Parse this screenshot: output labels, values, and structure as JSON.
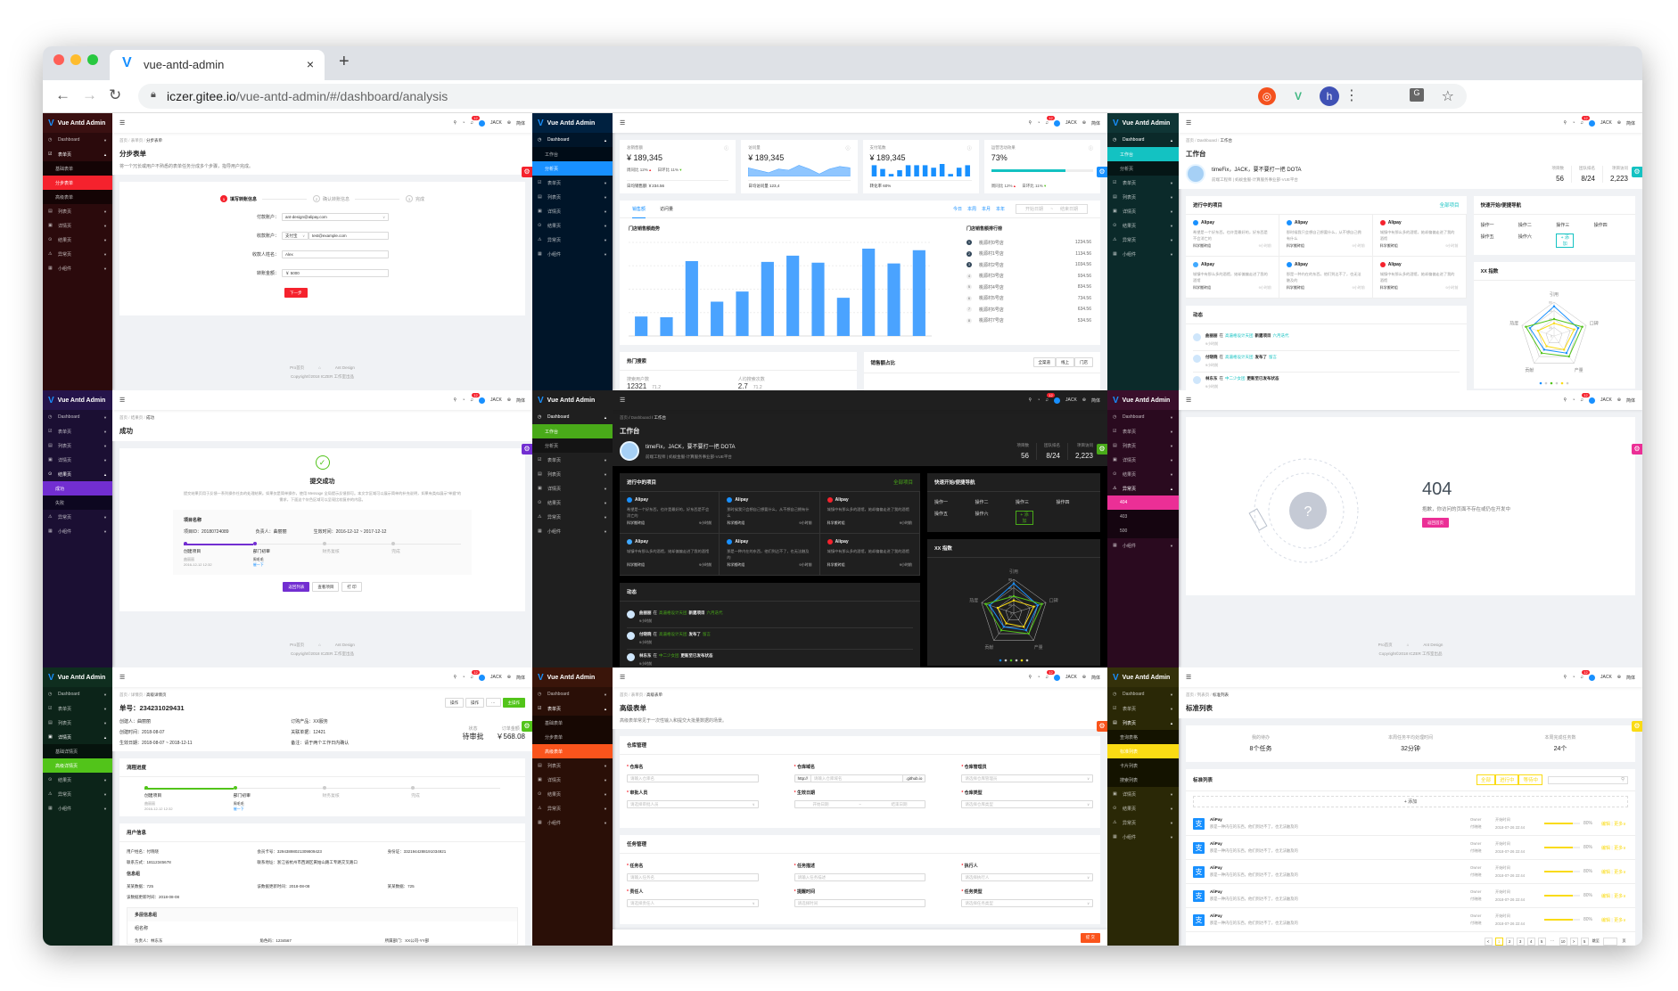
{
  "browser": {
    "tab_title": "vue-antd-admin",
    "close": "×",
    "new_tab": "+",
    "url_host": "iczer.gitee.io",
    "url_path": "/vue-antd-admin/#/dashboard/analysis",
    "profile_initial": "h",
    "icons": [
      "back-icon",
      "forward-icon",
      "reload-icon",
      "lock-icon",
      "translate-icon",
      "star-icon",
      "extension-icon",
      "vue-devtools-icon",
      "more-icon"
    ]
  },
  "app": {
    "logo_text": "Vue Antd Admin",
    "user": "JACK",
    "lang": "简体",
    "badge": "12"
  },
  "footer": {
    "links": [
      "Pro首页",
      "Ant Design"
    ],
    "copyright": "Copyright©2018 ICZER 工作室出品"
  },
  "menu": [
    {
      "label": "Dashboard",
      "icon": "dashboard-icon"
    },
    {
      "label": "表单页",
      "icon": "form-icon"
    },
    {
      "label": "列表页",
      "icon": "table-icon"
    },
    {
      "label": "详情页",
      "icon": "profile-icon"
    },
    {
      "label": "结果页",
      "icon": "check-circle-icon"
    },
    {
      "label": "异常页",
      "icon": "warning-icon"
    },
    {
      "label": "小组件",
      "icon": "appstore-icon"
    }
  ],
  "panels": [
    {
      "key": "step-form",
      "theme": {
        "sb": "#2b0a0c",
        "logo": "#3a1011",
        "sub": "#140405",
        "accent": "#f5222d"
      },
      "open": 1,
      "active": 1,
      "sub": [
        "基础表单",
        "分步表单",
        "高级表单"
      ],
      "breadcrumb": [
        "首页",
        "表单页",
        "分步表单"
      ],
      "title": "分步表单",
      "desc": "将一个冗长或用户不熟悉的表单任务分成多个步骤，指导用户完成。",
      "steps": [
        {
          "num": "1",
          "title": "填写转账信息"
        },
        {
          "num": "2",
          "title": "确认转账信息"
        },
        {
          "num": "3",
          "title": "完成"
        }
      ],
      "fields": [
        {
          "label": "付款账户：",
          "value": "ant-design@alipay.com"
        },
        {
          "label": "收款账户：",
          "select": "支付宝",
          "value": "test@example.com"
        },
        {
          "label": "收款人姓名：",
          "value": "Alex"
        },
        {
          "label": "转账金额：",
          "value": "￥ 5000"
        }
      ],
      "next": "下一步"
    },
    {
      "key": "analysis",
      "theme": {
        "sb": "#001529",
        "logo": "#002140",
        "sub": "#000c17",
        "accent": "#1890ff"
      },
      "open": 0,
      "active": 1,
      "sub": [
        "工作台",
        "分析页"
      ],
      "cards": [
        {
          "label": "总销售额",
          "value": "¥ 189,345",
          "wow": "周同比 12%",
          "dod": "日环比 11%",
          "foot": "日均销售额 ￥234.56"
        },
        {
          "label": "访问量",
          "value": "¥ 189,345",
          "foot": "日均访问量 123,4",
          "trend": [
            7,
            5,
            3,
            6,
            5,
            9,
            6,
            2,
            6,
            8,
            7
          ]
        },
        {
          "label": "支付笔数",
          "value": "¥ 189,345",
          "foot": "转化率 60%",
          "bars": [
            9,
            6,
            2,
            5,
            9,
            9,
            9,
            7,
            10,
            2,
            7,
            9
          ]
        },
        {
          "label": "运营活动效果",
          "value": "73%",
          "progress": 73,
          "wow": "周同比 12%",
          "dod": "日环比 11%"
        }
      ],
      "tabs": [
        "销售额",
        "访问量"
      ],
      "periods": [
        "今日",
        "本周",
        "本月",
        "本年"
      ],
      "range": {
        "start": "开始日期",
        "sep": "~",
        "end": "结束日期"
      },
      "rank_title": "门店销售额排行榜",
      "rank": [
        {
          "no": "1",
          "name": "桃源村0号店",
          "value": "1234.56"
        },
        {
          "no": "2",
          "name": "桃源村1号店",
          "value": "1134.56"
        },
        {
          "no": "3",
          "name": "桃源村2号店",
          "value": "1034.56"
        },
        {
          "no": "4",
          "name": "桃源村3号店",
          "value": "934.56"
        },
        {
          "no": "5",
          "name": "桃源村4号店",
          "value": "834.56"
        },
        {
          "no": "6",
          "name": "桃源村5号店",
          "value": "734.56"
        },
        {
          "no": "7",
          "name": "桃源村6号店",
          "value": "634.56"
        },
        {
          "no": "8",
          "name": "桃源村7号店",
          "value": "534.56"
        }
      ],
      "hot": {
        "title": "热门搜索",
        "users_label": "搜索用户数",
        "users": "12321",
        "users_rate": "71.2",
        "avg_label": "人均搜索次数",
        "avg": "2.7",
        "avg_rate": "71.2"
      },
      "share": {
        "title": "销售额占比",
        "buttons": [
          "全渠道",
          "线上",
          "门店"
        ]
      }
    },
    {
      "key": "workplace",
      "theme": {
        "sb": "#0b2a2a",
        "logo": "#0f3535",
        "sub": "#051616",
        "accent": "#13c2c2"
      },
      "open": 0,
      "active": 0,
      "sub": [
        "工作台",
        "分析页"
      ]
    },
    {
      "key": "success",
      "theme": {
        "sb": "#1b0f33",
        "logo": "#25144a",
        "sub": "#0d0720",
        "accent": "#722ed1"
      },
      "open": 4,
      "active": 0,
      "sub": [
        "成功",
        "失败"
      ],
      "breadcrumb": [
        "首页",
        "结果页",
        "成功"
      ],
      "title": "成功",
      "result_title": "提交成功",
      "result_desc": "提交结果页用于反馈一系列操作任务的处理结果。如果仅是简单操作，使用 Message 全局提示反馈即可。本文字区域可以展示简单的补充说明，如果有类似展示“单据”的需求，下面这个灰色区域可以呈现比较复杂的内容。",
      "project": {
        "title": "项目名称",
        "id": "项目ID：20180724089",
        "owner": "负责人：曲丽丽",
        "time": "生效时间：2016-12-12 ~ 2017-12-12"
      },
      "buttons": [
        "返回列表",
        "查看项目",
        "打 印"
      ]
    },
    {
      "key": "workplace-dark",
      "theme": {
        "sb": "#1f1f1f",
        "logo": "#1f1f1f",
        "sub": "#141414",
        "accent": "#49aa19"
      },
      "dark": true,
      "open": 0,
      "active": 0,
      "sub": [
        "工作台",
        "分析页"
      ]
    },
    {
      "key": "exception-404",
      "theme": {
        "sb": "#2a0a1f",
        "logo": "#3a0f2b",
        "sub": "#150510",
        "accent": "#eb2f96"
      },
      "open": 5,
      "active": 0,
      "sub": [
        "404",
        "403",
        "500"
      ],
      "code": "404",
      "message": "抱歉，你访问的页面不存在或仍在开发中",
      "back": "返回首页"
    },
    {
      "key": "advanced-profile",
      "theme": {
        "sb": "#0c2419",
        "logo": "#0f2e1f",
        "sub": "#06130d",
        "accent": "#52c41a"
      },
      "open": 3,
      "active": 1,
      "sub": [
        "基础详情页",
        "高级详情页"
      ],
      "breadcrumb": [
        "首页",
        "详情页",
        "高级详情页"
      ],
      "title": "单号：234231029431",
      "actions": [
        "操作",
        "操作",
        "···",
        "主操作"
      ],
      "info": [
        "创建人：曲丽丽",
        "订购产品：XX服务",
        "创建时间：2018-08-07",
        "关联单据：12421",
        "生效日期：2018-08-07 ~ 2018-12-11",
        "备注：请于两个工作日内确认"
      ],
      "status_label": "状态",
      "status": "待审批",
      "amount_label": "订单金额",
      "amount": "￥568.08",
      "flow_title": "流程进度",
      "user_title": "用户信息",
      "user": [
        "用户姓名：付晓晓",
        "会员卡号：32943898021309809423",
        "身份证：3321944288191034921",
        "联系方式：18112345678",
        "联系地址：浙江省杭州市西湖区黄姑山路工专路交叉路口",
        ""
      ],
      "group_title": "信息组",
      "group": [
        "某某数据：725",
        "该数据更新时间：2018-08-08",
        "某某数据：725",
        "该数据更新时间：2018-08-08"
      ],
      "multi_title": "多层信息组",
      "multi_name": "组名称",
      "multi": [
        "负责人：林东东",
        "角色码：1234567",
        "所属部门：XX公司-YY部"
      ]
    },
    {
      "key": "advanced-form",
      "theme": {
        "sb": "#2a0f07",
        "logo": "#3a150a",
        "sub": "#170803",
        "accent": "#fa541c"
      },
      "open": 1,
      "active": 2,
      "sub": [
        "基础表单",
        "分步表单",
        "高级表单"
      ],
      "breadcrumb": [
        "首页",
        "表单页",
        "高级表单"
      ],
      "title": "高级表单",
      "desc": "高级表单常见于一次性输入和提交大批量数据的场景。",
      "sections": [
        {
          "title": "仓库管理",
          "fields": [
            {
              "label": "仓库名",
              "ph": "请输入仓库名"
            },
            {
              "label": "仓库域名",
              "pre": "http://",
              "ph": "请输入仓库域名",
              "post": ".github.io"
            },
            {
              "label": "仓库管理员",
              "ph": "请选择仓库管理员",
              "select": true
            },
            {
              "label": "审批人员",
              "ph": "请选择审批人员",
              "select": true
            },
            {
              "label": "生效日期",
              "ph": "开始日期",
              "ph2": "结束日期"
            },
            {
              "label": "仓库类型",
              "ph": "请选择仓库类型",
              "select": true
            }
          ]
        },
        {
          "title": "任务管理",
          "fields": [
            {
              "label": "任务名",
              "ph": "请输入任务名"
            },
            {
              "label": "任务描述",
              "ph": "请输入任务描述"
            },
            {
              "label": "执行人",
              "ph": "请选择执行人",
              "select": true
            },
            {
              "label": "责任人",
              "ph": "请选择责任人",
              "select": true
            },
            {
              "label": "提醒时间",
              "ph": "请选择时间"
            },
            {
              "label": "任务类型",
              "ph": "请选择任务类型",
              "select": true
            }
          ]
        }
      ],
      "submit": "提 交"
    },
    {
      "key": "standard-list",
      "theme": {
        "sb": "#2a2806",
        "logo": "#34310a",
        "sub": "#141300",
        "accent": "#fadb14"
      },
      "open": 2,
      "active": 1,
      "sub": [
        "查询表格",
        "标准列表",
        "卡片列表",
        "搜索列表"
      ],
      "breadcrumb": [
        "首页",
        "列表页",
        "标准列表"
      ],
      "title": "标准列表",
      "stats": [
        {
          "label": "我的待办",
          "value": "8个任务"
        },
        {
          "label": "本周任务平均处理时间",
          "value": "32分钟"
        },
        {
          "label": "本周完成任务数",
          "value": "24个"
        }
      ],
      "list_title": "标准列表",
      "filters": [
        "全部",
        "进行中",
        "等待中"
      ],
      "add": "+ 添加",
      "items": [
        {
          "title": "AliPay",
          "desc": "那是一种内在的东西，他们到达不了，也无法触及的",
          "owner_label": "Owner",
          "owner": "付晓晓",
          "start_label": "开始时间",
          "start": "2018-07-26 22:44",
          "percent": 80,
          "percent_text": "80%",
          "edit": "编辑",
          "more": "更多"
        },
        {
          "title": "AliPay",
          "desc": "那是一种内在的东西，他们到达不了，也无法触及的",
          "owner_label": "Owner",
          "owner": "付晓晓",
          "start_label": "开始时间",
          "start": "2018-07-26 22:44",
          "percent": 80,
          "percent_text": "80%",
          "edit": "编辑",
          "more": "更多"
        },
        {
          "title": "AliPay",
          "desc": "那是一种内在的东西，他们到达不了，也无法触及的",
          "owner_label": "Owner",
          "owner": "付晓晓",
          "start_label": "开始时间",
          "start": "2018-07-26 22:44",
          "percent": 80,
          "percent_text": "80%",
          "edit": "编辑",
          "more": "更多"
        },
        {
          "title": "AliPay",
          "desc": "那是一种内在的东西，他们到达不了，也无法触及的",
          "owner_label": "Owner",
          "owner": "付晓晓",
          "start_label": "开始时间",
          "start": "2018-07-26 22:44",
          "percent": 80,
          "percent_text": "80%",
          "edit": "编辑",
          "more": "更多"
        },
        {
          "title": "AliPay",
          "desc": "那是一种内在的东西，他们到达不了，也无法触及的",
          "owner_label": "Owner",
          "owner": "付晓晓",
          "start_label": "开始时间",
          "start": "2018-07-26 22:44",
          "percent": 80,
          "percent_text": "80%",
          "edit": "编辑",
          "more": "更多"
        }
      ],
      "pagination": {
        "prev": "<",
        "pages": [
          "1",
          "2",
          "3",
          "4",
          "5"
        ],
        "ellipsis": "···",
        "last": "10",
        "next": ">",
        "size": "5",
        "goto": "跳至",
        "unit": "页"
      }
    }
  ],
  "workplace": {
    "breadcrumb": [
      "首页",
      "Dashboard",
      "工作台"
    ],
    "title": "工作台",
    "greeting": "timeFix，JACK，要不要打一把 DOTA",
    "subtitle": "前端工程师 | 蚂蚁金服-计算服务事业部-VUE平台",
    "stats": [
      {
        "label": "项目数",
        "value": "56"
      },
      {
        "label": "团队排名",
        "value": "8/24"
      },
      {
        "label": "项目访问",
        "value": "2,223"
      }
    ],
    "projects_title": "进行中的项目",
    "all_projects": "全部项目",
    "projects": [
      {
        "name": "Alipay",
        "desc": "希望是一个好东西，也许是最好的，好东西是不会消亡的",
        "group": "科学搬砖组",
        "time": "9小时前",
        "color": "#1890ff"
      },
      {
        "name": "Alipay",
        "desc": "那时候我只会想自己想要什么，从不想自己拥有什么",
        "group": "科学搬砖组",
        "time": "9小时前",
        "color": "#1890ff"
      },
      {
        "name": "Alipay",
        "desc": "城镇中有那么多的酒馆，她却偏偏走进了我的酒馆",
        "group": "科学搬砖组",
        "time": "9小时前",
        "color": "#f5222d"
      },
      {
        "name": "Alipay",
        "desc": "城镇中有那么多的酒馆，她却偏偏走进了我的酒馆",
        "group": "科学搬砖组",
        "time": "9小时前",
        "color": "#40a9ff"
      },
      {
        "name": "Alipay",
        "desc": "那是一种内在的东西，他们到达不了，也无法触及的",
        "group": "科学搬砖组",
        "time": "9小时前",
        "color": "#1890ff"
      },
      {
        "name": "Alipay",
        "desc": "城镇中有那么多的酒馆，她却偏偏走进了我的酒馆",
        "group": "科学搬砖组",
        "time": "9小时前",
        "color": "#f5222d"
      }
    ],
    "dynamics_title": "动态",
    "dynamics": [
      {
        "user": "曲丽丽",
        "at": "在",
        "group": "高逼格设计天团",
        "action": "新建项目",
        "target": "六月迭代",
        "time": "9小时前"
      },
      {
        "user": "付晓晓",
        "at": "在",
        "group": "高逼格设计天团",
        "action": "发布了",
        "target": "留言",
        "time": "9小时前"
      },
      {
        "user": "林东东",
        "at": "在",
        "group": "中二少女团",
        "action": "更新至已发布状态",
        "target": "",
        "time": "9小时前"
      }
    ],
    "quick_title": "快速开始/便捷导航",
    "quick": [
      "操作一",
      "操作二",
      "操作三",
      "操作四",
      "操作五",
      "操作六"
    ],
    "quick_add": "+ 添加",
    "radar_title": "XX 指数"
  },
  "flow": {
    "steps": [
      "创建项目",
      "部门初审",
      "财务复核",
      "完成"
    ],
    "creator": "曲丽丽",
    "created": "2016-12-12 12:32",
    "reviewer": "周毛毛",
    "urge": "催一下"
  },
  "chart_data": [
    {
      "type": "bar",
      "title": "门店销售额趋势",
      "categories": [
        "1月",
        "2月",
        "3月",
        "4月",
        "5月",
        "6月",
        "7月",
        "8月",
        "9月",
        "10月",
        "11月",
        "12月"
      ],
      "values": [
        250,
        240,
        960,
        440,
        570,
        950,
        1030,
        940,
        490,
        1120,
        930,
        1100
      ],
      "ylim": [
        0,
        1200
      ],
      "grid": true
    },
    {
      "type": "radar",
      "title": "XX 指数",
      "axes": [
        "引用",
        "口碑",
        "产量",
        "贡献",
        "热度"
      ],
      "ticks": [
        "0",
        "20",
        "40",
        "60",
        "80"
      ],
      "range": [
        0,
        80
      ],
      "series": [
        {
          "values": [
            70,
            60,
            50,
            40,
            60
          ],
          "color": "#1890ff"
        },
        {
          "values": [
            40,
            70,
            60,
            50,
            70
          ],
          "color": "#52c41a"
        },
        {
          "values": [
            30,
            50,
            40,
            30,
            40
          ],
          "color": "#fadb14"
        }
      ]
    }
  ]
}
